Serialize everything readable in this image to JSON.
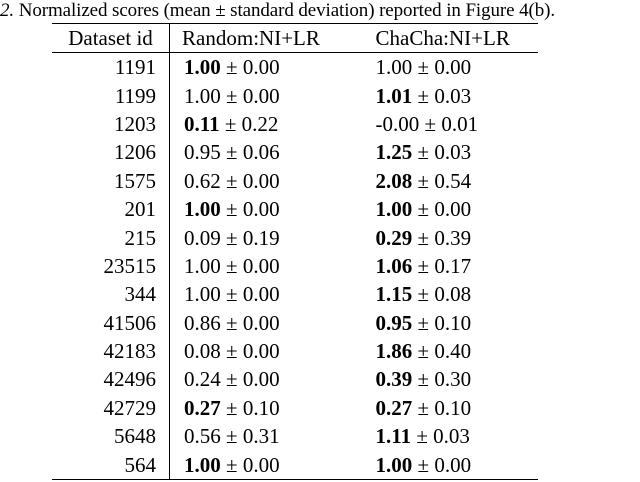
{
  "caption": {
    "number": "2.",
    "text": "Normalized scores (mean ± standard deviation) reported in Figure 4(b)."
  },
  "table": {
    "headers": [
      "Dataset id",
      "Random:NI+LR",
      "ChaCha:NI+LR"
    ],
    "pm": "±",
    "rows": [
      {
        "id": "1191",
        "a_mean": "1.00",
        "a_std": "0.00",
        "a_bold": true,
        "b_mean": "1.00",
        "b_std": "0.00",
        "b_bold": false
      },
      {
        "id": "1199",
        "a_mean": "1.00",
        "a_std": "0.00",
        "a_bold": false,
        "b_mean": "1.01",
        "b_std": "0.03",
        "b_bold": true
      },
      {
        "id": "1203",
        "a_mean": "0.11",
        "a_std": "0.22",
        "a_bold": true,
        "b_mean": "-0.00",
        "b_std": "0.01",
        "b_bold": false
      },
      {
        "id": "1206",
        "a_mean": "0.95",
        "a_std": "0.06",
        "a_bold": false,
        "b_mean": "1.25",
        "b_std": "0.03",
        "b_bold": true
      },
      {
        "id": "1575",
        "a_mean": "0.62",
        "a_std": "0.00",
        "a_bold": false,
        "b_mean": "2.08",
        "b_std": "0.54",
        "b_bold": true
      },
      {
        "id": "201",
        "a_mean": "1.00",
        "a_std": "0.00",
        "a_bold": true,
        "b_mean": "1.00",
        "b_std": "0.00",
        "b_bold": true
      },
      {
        "id": "215",
        "a_mean": "0.09",
        "a_std": "0.19",
        "a_bold": false,
        "b_mean": "0.29",
        "b_std": "0.39",
        "b_bold": true
      },
      {
        "id": "23515",
        "a_mean": "1.00",
        "a_std": "0.00",
        "a_bold": false,
        "b_mean": "1.06",
        "b_std": "0.17",
        "b_bold": true
      },
      {
        "id": "344",
        "a_mean": "1.00",
        "a_std": "0.00",
        "a_bold": false,
        "b_mean": "1.15",
        "b_std": "0.08",
        "b_bold": true
      },
      {
        "id": "41506",
        "a_mean": "0.86",
        "a_std": "0.00",
        "a_bold": false,
        "b_mean": "0.95",
        "b_std": "0.10",
        "b_bold": true
      },
      {
        "id": "42183",
        "a_mean": "0.08",
        "a_std": "0.00",
        "a_bold": false,
        "b_mean": "1.86",
        "b_std": "0.40",
        "b_bold": true
      },
      {
        "id": "42496",
        "a_mean": "0.24",
        "a_std": "0.00",
        "a_bold": false,
        "b_mean": "0.39",
        "b_std": "0.30",
        "b_bold": true
      },
      {
        "id": "42729",
        "a_mean": "0.27",
        "a_std": "0.10",
        "a_bold": true,
        "b_mean": "0.27",
        "b_std": "0.10",
        "b_bold": true
      },
      {
        "id": "5648",
        "a_mean": "0.56",
        "a_std": "0.31",
        "a_bold": false,
        "b_mean": "1.11",
        "b_std": "0.03",
        "b_bold": true
      },
      {
        "id": "564",
        "a_mean": "1.00",
        "a_std": "0.00",
        "a_bold": true,
        "b_mean": "1.00",
        "b_std": "0.00",
        "b_bold": true
      }
    ]
  }
}
